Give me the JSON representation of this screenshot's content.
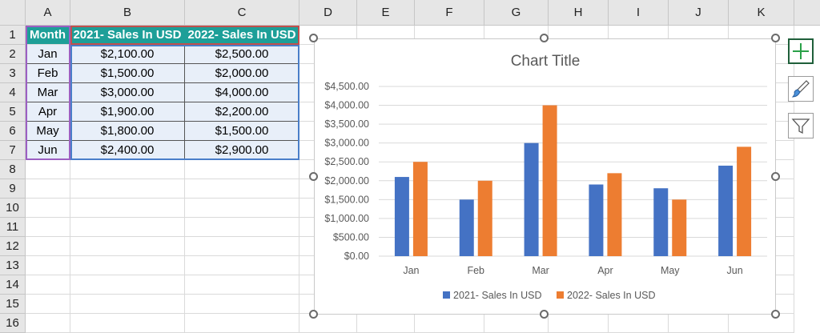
{
  "columns": [
    "A",
    "B",
    "C",
    "D",
    "E",
    "F",
    "G",
    "H",
    "I",
    "J",
    "K"
  ],
  "rows": [
    "1",
    "2",
    "3",
    "4",
    "5",
    "6",
    "7",
    "8",
    "9",
    "10",
    "11",
    "12",
    "13",
    "14",
    "15",
    "16"
  ],
  "table": {
    "headers": [
      "Month",
      "2021- Sales In USD",
      "2022- Sales In USD"
    ],
    "rows": [
      [
        "Jan",
        "$2,100.00",
        "$2,500.00"
      ],
      [
        "Feb",
        "$1,500.00",
        "$2,000.00"
      ],
      [
        "Mar",
        "$3,000.00",
        "$4,000.00"
      ],
      [
        "Apr",
        "$1,900.00",
        "$2,200.00"
      ],
      [
        "May",
        "$1,800.00",
        "$1,500.00"
      ],
      [
        "Jun",
        "$2,400.00",
        "$2,900.00"
      ]
    ]
  },
  "chart_data": {
    "type": "bar",
    "title": "Chart Title",
    "categories": [
      "Jan",
      "Feb",
      "Mar",
      "Apr",
      "May",
      "Jun"
    ],
    "series": [
      {
        "name": "2021- Sales In USD",
        "values": [
          2100,
          1500,
          3000,
          1900,
          1800,
          2400
        ],
        "color": "#4472c4"
      },
      {
        "name": "2022- Sales In USD",
        "values": [
          2500,
          2000,
          4000,
          2200,
          1500,
          2900
        ],
        "color": "#ed7d31"
      }
    ],
    "ylim": [
      0,
      4500
    ],
    "yticks": [
      0,
      500,
      1000,
      1500,
      2000,
      2500,
      3000,
      3500,
      4000,
      4500
    ],
    "ytick_labels": [
      "$0.00",
      "$500.00",
      "$1,000.00",
      "$1,500.00",
      "$2,000.00",
      "$2,500.00",
      "$3,000.00",
      "$3,500.00",
      "$4,000.00",
      "$4,500.00"
    ],
    "grid": true,
    "legend": "bottom"
  },
  "side_buttons": [
    {
      "name": "chart-elements",
      "icon": "plus-icon"
    },
    {
      "name": "chart-styles",
      "icon": "brush-icon"
    },
    {
      "name": "chart-filters",
      "icon": "filter-icon"
    }
  ],
  "colors": {
    "header_teal": "#1d9f98",
    "table_fill": "#e8eff9",
    "series1": "#4472c4",
    "series2": "#ed7d31"
  }
}
